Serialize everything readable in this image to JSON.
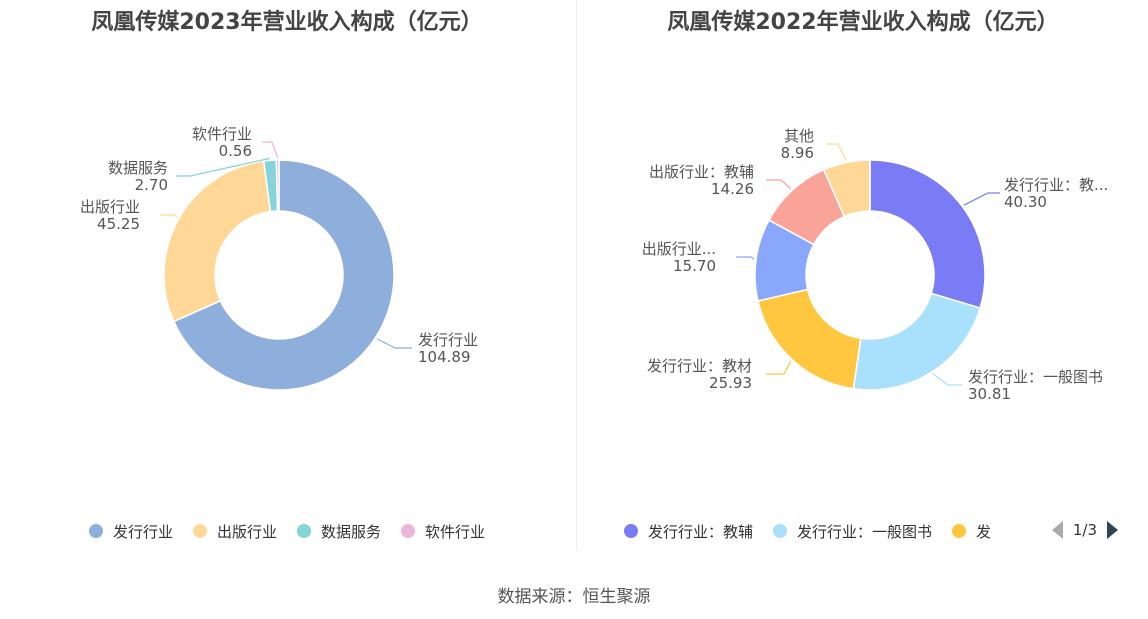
{
  "chart_data": [
    {
      "type": "pie",
      "title": "凤凰传媒2023年营业收入构成（亿元）",
      "donut": true,
      "legend_position": "bottom",
      "slices": [
        {
          "name": "发行行业",
          "value": 104.89,
          "color": "#8eaedb"
        },
        {
          "name": "出版行业",
          "value": 45.25,
          "color": "#ffd897"
        },
        {
          "name": "数据服务",
          "value": 2.7,
          "color": "#85d4d8"
        },
        {
          "name": "软件行业",
          "value": 0.56,
          "color": "#e8b6d8"
        }
      ],
      "labels": [
        {
          "name": "发行行业",
          "value": "104.89"
        },
        {
          "name": "出版行业",
          "value": "45.25"
        },
        {
          "name": "数据服务",
          "value": "2.70"
        },
        {
          "name": "软件行业",
          "value": "0.56"
        }
      ],
      "legend": [
        "发行行业",
        "出版行业",
        "数据服务",
        "软件行业"
      ]
    },
    {
      "type": "pie",
      "title": "凤凰传媒2022年营业收入构成（亿元）",
      "donut": true,
      "legend_position": "bottom",
      "slices": [
        {
          "name": "发行行业：教辅",
          "value": 40.3,
          "color": "#7a7cf5"
        },
        {
          "name": "发行行业：一般图书",
          "value": 30.81,
          "color": "#a9e0fb"
        },
        {
          "name": "发行行业：教材",
          "value": 25.93,
          "color": "#ffc640"
        },
        {
          "name": "出版行业…",
          "value": 15.7,
          "color": "#8aa8fb"
        },
        {
          "name": "出版行业：教辅",
          "value": 14.26,
          "color": "#f9a399"
        },
        {
          "name": "其他",
          "value": 8.96,
          "color": "#ffd897"
        }
      ],
      "labels": [
        {
          "name": "发行行业：教...",
          "value": "40.30"
        },
        {
          "name": "发行行业：一般图书",
          "value": "30.81"
        },
        {
          "name": "发行行业：教材",
          "value": "25.93"
        },
        {
          "name": "出版行业...",
          "value": "15.70"
        },
        {
          "name": "出版行业：教辅",
          "value": "14.26"
        },
        {
          "name": "其他",
          "value": "8.96"
        }
      ],
      "legend": [
        "发行行业：教辅",
        "发行行业：一般图书",
        "发"
      ],
      "legend_page": "1/3"
    }
  ],
  "source": "数据来源：恒生聚源"
}
